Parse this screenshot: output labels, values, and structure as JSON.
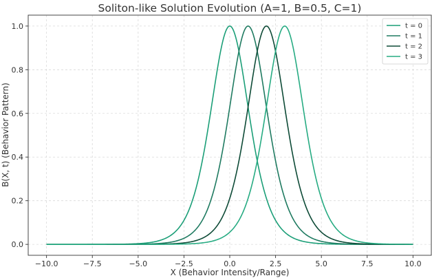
{
  "chart_data": {
    "type": "line",
    "title": "Soliton-like Solution Evolution (A=1, B=0.5, C=1)",
    "xlabel": "X (Behavior Intensity/Range)",
    "ylabel": "B(X, t) (Behavior Pattern)",
    "xlim": [
      -11,
      11
    ],
    "ylim": [
      -0.05,
      1.05
    ],
    "x_range": [
      -10,
      10
    ],
    "xticks": [
      -10,
      -7.5,
      -5,
      -2.5,
      0,
      2.5,
      5,
      7.5,
      10
    ],
    "xtick_labels": [
      "−10.0",
      "−7.5",
      "−5.0",
      "−2.5",
      "0.0",
      "2.5",
      "5.0",
      "7.5",
      "10.0"
    ],
    "yticks": [
      0,
      0.2,
      0.4,
      0.6,
      0.8,
      1.0
    ],
    "ytick_labels": [
      "0.0",
      "0.2",
      "0.4",
      "0.6",
      "0.8",
      "1.0"
    ],
    "grid": true,
    "legend_position": "top-right",
    "function": "A * sech^2(sqrt(B) * (x - C*t))",
    "params": {
      "A": 1,
      "B": 0.5,
      "C": 1
    },
    "series": [
      {
        "name": "t = 0",
        "t": 0,
        "peak_x": 0,
        "color": "#1a9e77"
      },
      {
        "name": "t = 1",
        "t": 1,
        "peak_x": 1,
        "color": "#1e7a60"
      },
      {
        "name": "t = 2",
        "t": 2,
        "peak_x": 2,
        "color": "#0d4a36"
      },
      {
        "name": "t = 3",
        "t": 3,
        "peak_x": 3,
        "color": "#26ab82"
      }
    ]
  }
}
